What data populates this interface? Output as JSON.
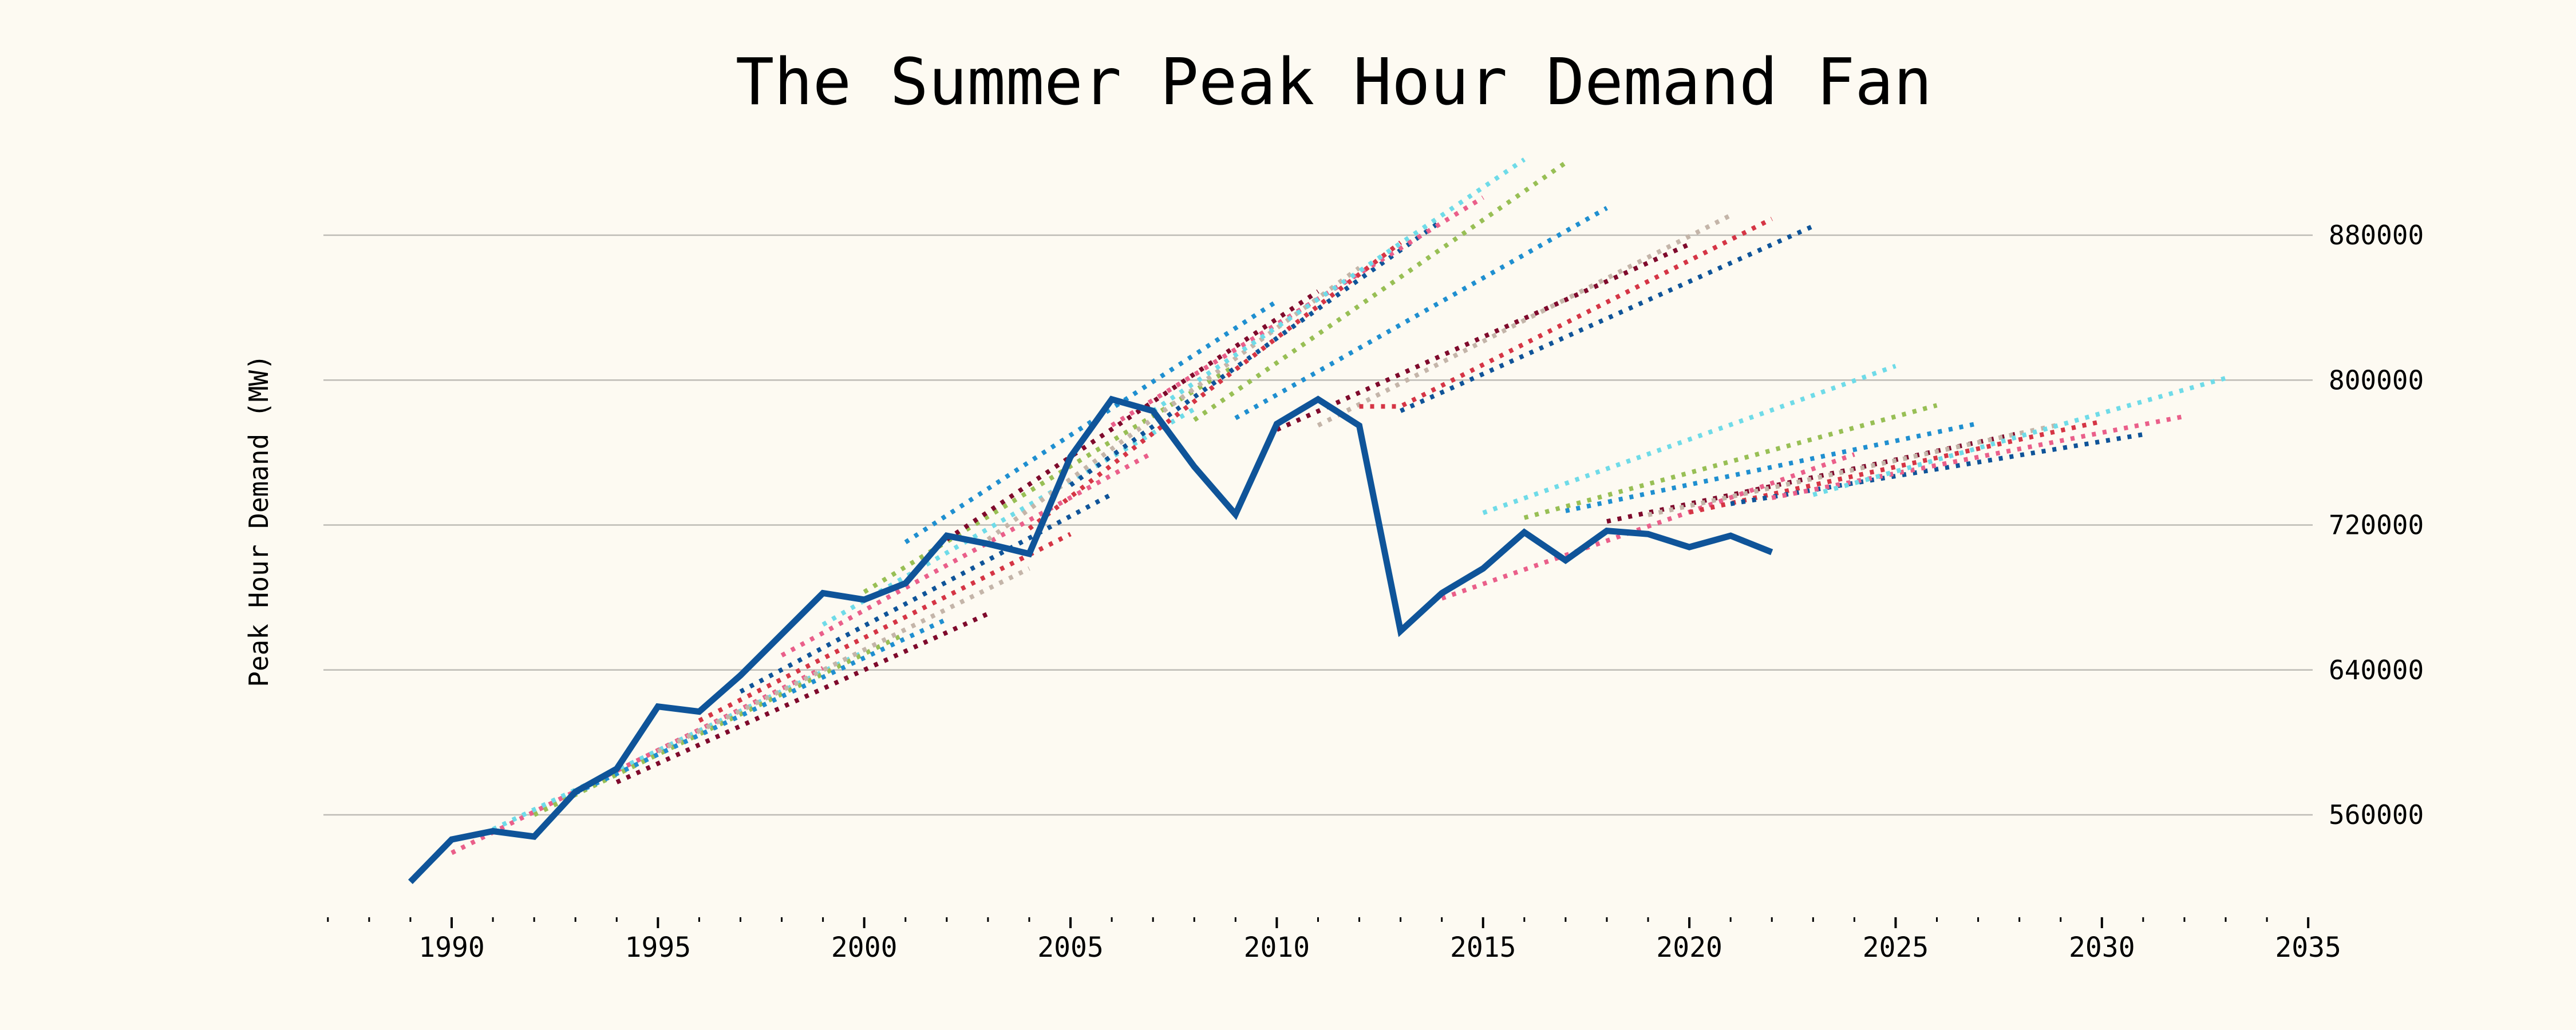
{
  "chart_data": {
    "type": "line",
    "title": "The Summer Peak Hour Demand Fan",
    "ylabel": "Peak Hour Demand (MW)",
    "xlabel": "",
    "xlim": [
      1987,
      2035
    ],
    "ylim": [
      510000,
      920000
    ],
    "x_ticks": [
      1990,
      1995,
      2000,
      2005,
      2010,
      2015,
      2020,
      2025,
      2030,
      2035
    ],
    "y_ticks": [
      560000,
      640000,
      720000,
      800000,
      880000
    ],
    "grid": "horizontal",
    "y_axis_side": "right",
    "actual": {
      "color": "#0f5499",
      "x": [
        1989,
        1990,
        1991,
        1992,
        1993,
        1994,
        1995,
        1996,
        1997,
        1998,
        1999,
        2000,
        2001,
        2002,
        2003,
        2004,
        2005,
        2006,
        2007,
        2008,
        2009,
        2010,
        2011,
        2012,
        2013,
        2014,
        2015,
        2016,
        2017,
        2018,
        2019,
        2020,
        2021,
        2022
      ],
      "values": [
        523000,
        546400,
        551000,
        548000,
        572700,
        585400,
        619800,
        617000,
        637000,
        659700,
        682400,
        678800,
        687800,
        714100,
        709600,
        704100,
        757600,
        789400,
        783000,
        752200,
        725900,
        775800,
        789400,
        774900,
        661500,
        682400,
        696000,
        716000,
        700500,
        716800,
        715000,
        707800,
        714100,
        705000
      ]
    },
    "forecasts": [
      {
        "issued": 1990,
        "color": "#ea5f8a",
        "points": [
          [
            1990,
            539000
          ],
          [
            1999,
            641000
          ]
        ]
      },
      {
        "issued": 1991,
        "color": "#6fdbe8",
        "points": [
          [
            1991,
            552000
          ],
          [
            2000,
            650000
          ]
        ]
      },
      {
        "issued": 1992,
        "color": "#98bf55",
        "points": [
          [
            1992,
            560000
          ],
          [
            2001,
            660000
          ]
        ]
      },
      {
        "issued": 1993,
        "color": "#1f8fd0",
        "points": [
          [
            1993,
            572000
          ],
          [
            2002,
            668000
          ]
        ]
      },
      {
        "issued": 1994,
        "color": "#7f0a2c",
        "points": [
          [
            1994,
            578000
          ],
          [
            2003,
            671000
          ]
        ]
      },
      {
        "issued": 1995,
        "color": "#c4b5a9",
        "points": [
          [
            1995,
            595000
          ],
          [
            2004,
            696000
          ]
        ]
      },
      {
        "issued": 1996,
        "color": "#d53545",
        "points": [
          [
            1996,
            612000
          ],
          [
            2005,
            715000
          ]
        ]
      },
      {
        "issued": 1997,
        "color": "#0f5499",
        "points": [
          [
            1997,
            628000
          ],
          [
            2006,
            737000
          ]
        ]
      },
      {
        "issued": 1998,
        "color": "#ea5f8a",
        "points": [
          [
            1998,
            648000
          ],
          [
            2007,
            760000
          ]
        ]
      },
      {
        "issued": 1999,
        "color": "#6fdbe8",
        "points": [
          [
            1999,
            665000
          ],
          [
            2008,
            784000
          ]
        ]
      },
      {
        "issued": 2000,
        "color": "#98bf55",
        "points": [
          [
            2000,
            683000
          ],
          [
            2009,
            808000
          ]
        ]
      },
      {
        "issued": 2001,
        "color": "#1f8fd0",
        "points": [
          [
            2001,
            710500
          ],
          [
            2010,
            843500
          ]
        ]
      },
      {
        "issued": 2002,
        "color": "#7f0a2c",
        "points": [
          [
            2002,
            712000
          ],
          [
            2011,
            849000
          ]
        ]
      },
      {
        "issued": 2003,
        "color": "#c4b5a9",
        "points": [
          [
            2003,
            712000
          ],
          [
            2012,
            862000
          ]
        ]
      },
      {
        "issued": 2004,
        "color": "#d53545",
        "points": [
          [
            2004,
            718000
          ],
          [
            2013,
            876000
          ]
        ]
      },
      {
        "issued": 2005,
        "color": "#0f5499",
        "points": [
          [
            2005,
            742000
          ],
          [
            2014,
            888000
          ]
        ]
      },
      {
        "issued": 2006,
        "color": "#ea5f8a",
        "points": [
          [
            2006,
            775000
          ],
          [
            2015,
            900800
          ]
        ]
      },
      {
        "issued": 2007,
        "color": "#6fdbe8",
        "points": [
          [
            2007,
            783000
          ],
          [
            2016,
            921800
          ]
        ]
      },
      {
        "issued": 2008,
        "color": "#98bf55",
        "points": [
          [
            2008,
            778000
          ],
          [
            2017,
            920000
          ]
        ]
      },
      {
        "issued": 2009,
        "color": "#1f8fd0",
        "points": [
          [
            2009,
            779000
          ],
          [
            2018,
            895000
          ]
        ]
      },
      {
        "issued": 2010,
        "color": "#7f0a2c",
        "points": [
          [
            2010,
            772600
          ],
          [
            2020,
            875000
          ]
        ]
      },
      {
        "issued": 2011,
        "color": "#c4b5a9",
        "points": [
          [
            2011,
            775000
          ],
          [
            2021,
            891000
          ]
        ]
      },
      {
        "issued": 2012,
        "color": "#d53545",
        "points": [
          [
            2012,
            785500
          ],
          [
            2013,
            785500
          ],
          [
            2022,
            889000
          ]
        ]
      },
      {
        "issued": 2013,
        "color": "#0f5499",
        "points": [
          [
            2013,
            783000
          ],
          [
            2023,
            885000
          ]
        ]
      },
      {
        "issued": 2014,
        "color": "#ea5f8a",
        "points": [
          [
            2014,
            679500
          ],
          [
            2024,
            759000
          ]
        ]
      },
      {
        "issued": 2015,
        "color": "#6fdbe8",
        "points": [
          [
            2015,
            726700
          ],
          [
            2025,
            807800
          ]
        ]
      },
      {
        "issued": 2016,
        "color": "#98bf55",
        "points": [
          [
            2016,
            724000
          ],
          [
            2026,
            786100
          ]
        ]
      },
      {
        "issued": 2017,
        "color": "#1f8fd0",
        "points": [
          [
            2017,
            727800
          ],
          [
            2027,
            776100
          ]
        ]
      },
      {
        "issued": 2018,
        "color": "#7f0a2c",
        "points": [
          [
            2018,
            722000
          ],
          [
            2028,
            770600
          ]
        ]
      },
      {
        "issued": 2019,
        "color": "#c4b5a9",
        "points": [
          [
            2019,
            725600
          ],
          [
            2029,
            775600
          ]
        ]
      },
      {
        "issued": 2020,
        "color": "#d53545",
        "points": [
          [
            2020,
            727000
          ],
          [
            2030,
            777200
          ]
        ]
      },
      {
        "issued": 2021,
        "color": "#0f5499",
        "points": [
          [
            2021,
            731700
          ],
          [
            2031,
            770000
          ]
        ]
      },
      {
        "issued": 2022,
        "color": "#ea5f8a",
        "points": [
          [
            2022,
            735000
          ],
          [
            2032,
            780000
          ]
        ]
      },
      {
        "issued": 2023,
        "color": "#6fdbe8",
        "points": [
          [
            2023,
            736700
          ],
          [
            2033,
            801100
          ]
        ]
      }
    ]
  },
  "colors": {
    "background": "#fdfaf2",
    "grid": "#bdbbb5",
    "text": "#000000"
  }
}
